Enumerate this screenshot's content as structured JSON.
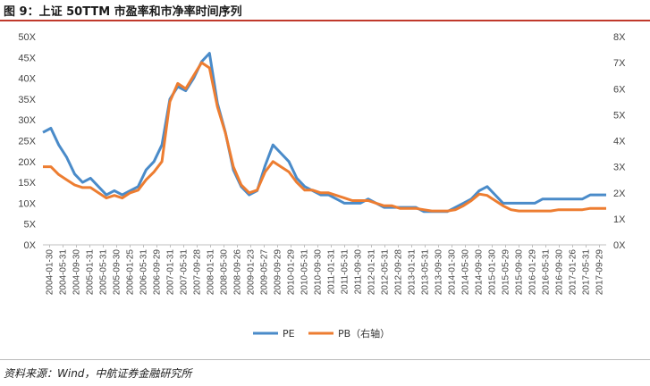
{
  "figure": {
    "title": "图 9：上证 50TTM 市盈率和市净率时间序列",
    "source": "资料来源：Wind，中航证券金融研究所"
  },
  "colors": {
    "pe": "#4A8BC9",
    "pb": "#ED7D31",
    "axis": "#bfbfbf",
    "text": "#444444"
  },
  "chart_data": {
    "type": "line",
    "title": "",
    "xlabel": "",
    "ylabel": "",
    "ylabel_right": "",
    "y_left_ticks": [
      "0X",
      "5X",
      "10X",
      "15X",
      "20X",
      "25X",
      "30X",
      "35X",
      "40X",
      "45X",
      "50X"
    ],
    "y_right_ticks": [
      "0X",
      "1X",
      "2X",
      "3X",
      "4X",
      "5X",
      "6X",
      "7X",
      "8X"
    ],
    "ylim_left": [
      0,
      50
    ],
    "ylim_right": [
      0,
      8
    ],
    "x_tick_labels": [
      "2004-01-30",
      "2004-05-31",
      "2004-09-30",
      "2005-01-31",
      "2005-05-31",
      "2005-09-30",
      "2006-01-25",
      "2006-05-31",
      "2006-09-29",
      "2007-01-31",
      "2007-05-31",
      "2007-09-28",
      "2008-01-31",
      "2008-05-30",
      "2008-09-26",
      "2009-01-23",
      "2009-05-27",
      "2009-09-29",
      "2010-01-29",
      "2010-05-31",
      "2010-09-30",
      "2011-01-31",
      "2011-05-31",
      "2011-09-30",
      "2012-01-31",
      "2012-05-31",
      "2012-09-28",
      "2013-01-31",
      "2013-05-31",
      "2013-09-30",
      "2014-01-30",
      "2014-05-30",
      "2014-09-30",
      "2015-01-30",
      "2015-05-29",
      "2015-09-30",
      "2016-01-29",
      "2016-05-31",
      "2016-09-30",
      "2017-01-26",
      "2017-05-31",
      "2017-09-29"
    ],
    "legend_position": "bottom",
    "grid": false,
    "series": [
      {
        "name": "PE",
        "axis": "left",
        "values": [
          27,
          28,
          24,
          21,
          17,
          15,
          16,
          14,
          12,
          13,
          12,
          13,
          14,
          18,
          20,
          24,
          35,
          38,
          37,
          40,
          44,
          46,
          34,
          27,
          18,
          14,
          12,
          13,
          19,
          24,
          22,
          20,
          16,
          14,
          13,
          12,
          12,
          11,
          10,
          10,
          10,
          11,
          10,
          9,
          9,
          9,
          9,
          9,
          8,
          8,
          8,
          8,
          9,
          10,
          11,
          13,
          14,
          12,
          10,
          10,
          10,
          10,
          10,
          11,
          11,
          11,
          11,
          11,
          11,
          12,
          12,
          12
        ]
      },
      {
        "name": "PB（右轴）",
        "axis": "right",
        "values": [
          3,
          3,
          2.7,
          2.5,
          2.3,
          2.2,
          2.2,
          2,
          1.8,
          1.9,
          1.8,
          2,
          2.1,
          2.5,
          2.8,
          3.2,
          5.5,
          6.2,
          6,
          6.5,
          7,
          6.8,
          5.3,
          4.3,
          3,
          2.3,
          2,
          2.1,
          2.8,
          3.2,
          3,
          2.8,
          2.4,
          2.1,
          2.1,
          2,
          2,
          1.9,
          1.8,
          1.7,
          1.7,
          1.7,
          1.6,
          1.5,
          1.5,
          1.4,
          1.4,
          1.4,
          1.35,
          1.3,
          1.3,
          1.3,
          1.35,
          1.5,
          1.7,
          1.95,
          1.9,
          1.7,
          1.5,
          1.35,
          1.3,
          1.3,
          1.3,
          1.3,
          1.3,
          1.35,
          1.35,
          1.35,
          1.35,
          1.4,
          1.4,
          1.4
        ]
      }
    ]
  }
}
